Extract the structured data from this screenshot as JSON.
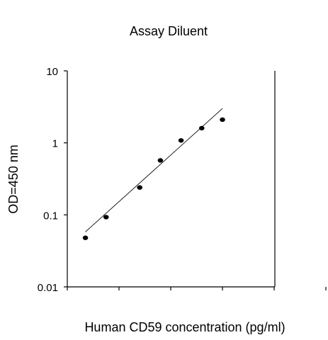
{
  "chart_data": {
    "type": "scatter",
    "title": "Assay Diluent",
    "xlabel": "Human CD59 concentration (pg/ml)",
    "ylabel": "OD=450 nm",
    "yscale": "log",
    "ylim": [
      0.01,
      10
    ],
    "yticks": [
      {
        "value": 10,
        "label": "10"
      },
      {
        "value": 1,
        "label": "1"
      },
      {
        "value": 0.1,
        "label": "0.1"
      },
      {
        "value": 0.01,
        "label": "0.01"
      }
    ],
    "xticks": [
      {
        "index": 0,
        "label": ""
      },
      {
        "index": 1,
        "label": ""
      },
      {
        "index": 2,
        "label": ""
      },
      {
        "index": 3,
        "label": ""
      },
      {
        "index": 4,
        "label": ""
      },
      {
        "index": 5,
        "label": ""
      }
    ],
    "x_tick_labels_shown": false,
    "grid": false,
    "points": [
      {
        "x_index": 0.35,
        "y": 0.048
      },
      {
        "x_index": 0.75,
        "y": 0.093
      },
      {
        "x_index": 1.4,
        "y": 0.24
      },
      {
        "x_index": 1.8,
        "y": 0.57
      },
      {
        "x_index": 2.2,
        "y": 1.08
      },
      {
        "x_index": 2.6,
        "y": 1.6
      },
      {
        "x_index": 3.0,
        "y": 2.1
      }
    ],
    "fit_line": {
      "type": "linear-loglog",
      "from": {
        "x_index": 0.35,
        "y": 0.058
      },
      "to": {
        "x_index": 3.0,
        "y": 3.0
      }
    },
    "colors": {
      "points": "#000000",
      "line": "#000000",
      "axes": "#000000",
      "background": "#ffffff"
    }
  }
}
